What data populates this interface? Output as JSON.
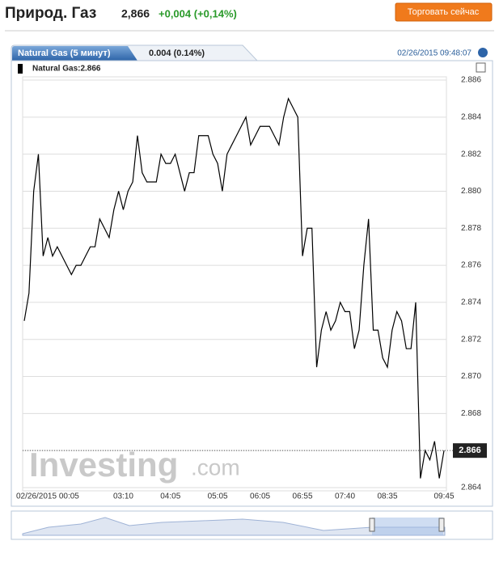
{
  "header": {
    "title": "Природ. Газ",
    "price": "2,866",
    "change": "+0,004 (+0,14%)",
    "button": "Торговать сейчас"
  },
  "chart_data": {
    "type": "line",
    "tab_title": "Natural Gas (5 минут)",
    "tab_change": "0.004 (0.14%)",
    "timestamp": "02/26/2015 09:48:07",
    "legend_label": "Natural Gas:2.866",
    "watermark": "Investing",
    "watermark_suffix": ".com",
    "color": "#000000",
    "grid": true,
    "ylim": [
      2.864,
      2.886
    ],
    "yticks": [
      2.864,
      2.866,
      2.868,
      {
        "value": 2.87,
        "label": "2.870"
      },
      2.872,
      2.874,
      2.876,
      2.878,
      {
        "value": 2.88,
        "label": "2.880"
      },
      2.882,
      2.884,
      2.886
    ],
    "categories": [
      "02/26/2015 00:05",
      null,
      null,
      null,
      null,
      null,
      null,
      null,
      null,
      null,
      null,
      null,
      null,
      null,
      null,
      null,
      null,
      null,
      null,
      null,
      null,
      "03:10",
      null,
      null,
      null,
      null,
      null,
      null,
      null,
      null,
      null,
      "04:05",
      null,
      null,
      null,
      null,
      null,
      null,
      null,
      null,
      null,
      "05:05",
      null,
      null,
      null,
      null,
      null,
      null,
      null,
      null,
      "06:05",
      null,
      null,
      null,
      null,
      null,
      null,
      null,
      null,
      "06:55",
      null,
      null,
      null,
      null,
      null,
      null,
      null,
      null,
      "07:40",
      null,
      null,
      null,
      null,
      null,
      null,
      null,
      null,
      "08:35",
      null,
      null,
      null,
      null,
      null,
      null,
      null,
      null,
      null,
      null,
      null,
      "09:45"
    ],
    "values": [
      2.873,
      2.8745,
      2.88,
      2.882,
      2.8765,
      2.8775,
      2.8765,
      2.877,
      2.8765,
      2.876,
      2.8755,
      2.876,
      2.876,
      2.8765,
      2.877,
      2.877,
      2.8785,
      2.878,
      2.8775,
      2.879,
      2.88,
      2.879,
      2.88,
      2.8805,
      2.883,
      2.881,
      2.8805,
      2.8805,
      2.8805,
      2.882,
      2.8815,
      2.8815,
      2.882,
      2.881,
      2.88,
      2.881,
      2.881,
      2.883,
      2.883,
      2.883,
      2.882,
      2.8815,
      2.88,
      2.882,
      2.8825,
      2.883,
      2.8835,
      2.884,
      2.8825,
      2.883,
      2.8835,
      2.8835,
      2.8835,
      2.883,
      2.8825,
      2.884,
      2.885,
      2.8845,
      2.884,
      2.8765,
      2.878,
      2.878,
      2.8705,
      2.8725,
      2.8735,
      2.8725,
      2.873,
      2.874,
      2.8735,
      2.8735,
      2.8715,
      2.8725,
      2.876,
      2.8785,
      2.8725,
      2.8725,
      2.871,
      2.8705,
      2.8725,
      2.8735,
      2.873,
      2.8715,
      2.8715,
      2.874,
      2.8645,
      2.866,
      2.8655,
      2.8665,
      2.8645,
      2.866
    ]
  }
}
